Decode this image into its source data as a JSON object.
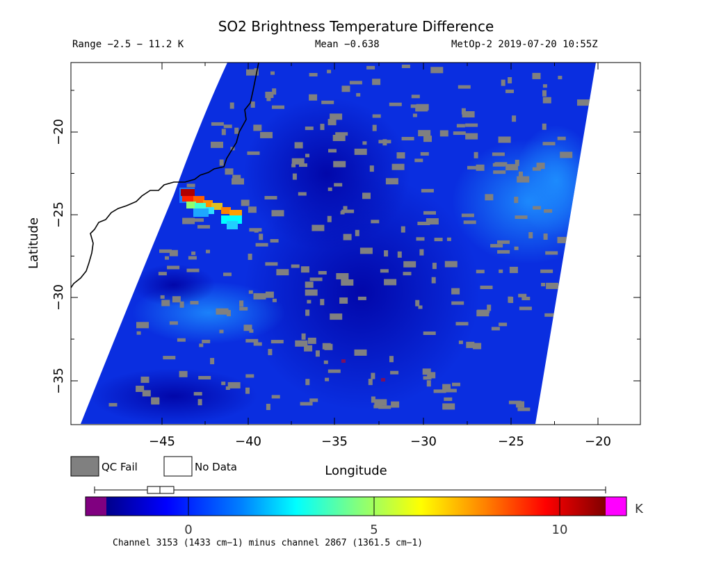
{
  "title": "SO2 Brightness Temperature Difference",
  "header": {
    "range": "Range −2.5 − 11.2 K",
    "mean": "Mean −0.638",
    "sat_time": "MetOp-2 2019-07-20 10:55Z"
  },
  "axes": {
    "xlabel": "Longitude",
    "ylabel": "Latitude",
    "x_ticks": [
      "−45",
      "−40",
      "−35",
      "−30",
      "−25",
      "−20"
    ],
    "y_ticks": [
      "−20",
      "−25",
      "−30",
      "−35"
    ]
  },
  "legend": {
    "qc_fail": "QC Fail",
    "no_data": "No Data",
    "qc_fail_color": "#808080",
    "no_data_color": "#ffffff"
  },
  "colorbar": {
    "ticks": [
      "0",
      "5",
      "10"
    ],
    "unit": "K",
    "min_value": -2.5,
    "max_value": 11.2,
    "under_color": "#800080",
    "over_color": "#ff00ff"
  },
  "footnote": "Channel 3153 (1433 cm−1) minus channel 2867 (1361.5 cm−1)",
  "chart_data": {
    "type": "heatmap",
    "title": "SO2 Brightness Temperature Difference",
    "xlabel": "Longitude",
    "ylabel": "Latitude",
    "xlim": [
      -50,
      -18
    ],
    "ylim": [
      -37.5,
      -16
    ],
    "value_range_K": [
      -2.5,
      11.2
    ],
    "mean_K": -0.638,
    "plume": {
      "description_values": [
        {
          "lon": -43.0,
          "lat": -24.0,
          "value": 11.0
        },
        {
          "lon": -42.0,
          "lat": -24.4,
          "value": 7.5
        },
        {
          "lon": -41.0,
          "lat": -24.8,
          "value": 6.0
        },
        {
          "lon": -42.5,
          "lat": -25.0,
          "value": 3.5
        },
        {
          "lon": -41.0,
          "lat": -25.5,
          "value": 3.0
        }
      ]
    },
    "background_values": [
      {
        "lon": -34.0,
        "lat": -22.0,
        "value": -1.0
      },
      {
        "lon": -31.0,
        "lat": -34.0,
        "value": -1.8
      },
      {
        "lon": -24.0,
        "lat": -25.0,
        "value": 1.5
      },
      {
        "lon": -44.0,
        "lat": -31.0,
        "value": 1.8
      }
    ]
  }
}
